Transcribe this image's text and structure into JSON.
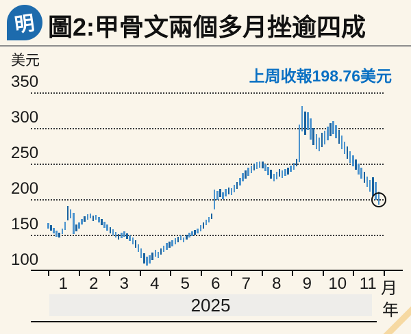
{
  "header": {
    "logo_char": "明",
    "title": "圖2:甲骨文兩個多月挫逾四成"
  },
  "annotation": {
    "text": "上周收報198.76美元"
  },
  "axis": {
    "y_unit": "美元",
    "x_month_unit": "月",
    "x_year_unit": "年",
    "year": "2025"
  },
  "colors": {
    "background": "#faf5ea",
    "logo_blue": "#1d6bad",
    "annotation_blue": "#0a70c3",
    "candle_light": "#4b93ce",
    "candle_dark": "#19619f",
    "band_gray": "#eeedea",
    "corner_stripe": "#f6d9a2"
  },
  "chart_data": {
    "type": "candlestick",
    "title": "圖2:甲骨文兩個多月挫逾四成",
    "ylabel": "美元",
    "xlabel": "月",
    "year": "2025",
    "ylim": [
      100,
      350
    ],
    "y_ticks": [
      350,
      300,
      250,
      200,
      150,
      100
    ],
    "x_months": [
      "1",
      "2",
      "3",
      "4",
      "5",
      "6",
      "7",
      "8",
      "9",
      "10",
      "11"
    ],
    "grid": "dotted-horizontal",
    "legend": "none",
    "annotation_text": "上周收報198.76美元",
    "last_close": 198.76,
    "highlight_last_point": true,
    "candles_format": "[month_decimal, low_usd, high_usd]",
    "candles": [
      [
        1.0,
        159,
        166
      ],
      [
        1.09,
        156,
        163
      ],
      [
        1.19,
        152,
        160
      ],
      [
        1.28,
        147,
        156
      ],
      [
        1.37,
        146,
        153
      ],
      [
        1.47,
        151,
        159
      ],
      [
        1.56,
        157,
        168
      ],
      [
        1.65,
        170,
        190
      ],
      [
        1.74,
        173,
        186
      ],
      [
        1.84,
        151,
        181
      ],
      [
        1.93,
        155,
        164
      ],
      [
        2.02,
        159,
        167
      ],
      [
        2.11,
        164,
        172
      ],
      [
        2.2,
        168,
        176
      ],
      [
        2.3,
        171,
        179
      ],
      [
        2.39,
        173,
        180
      ],
      [
        2.48,
        169,
        177
      ],
      [
        2.57,
        171,
        178
      ],
      [
        2.67,
        167,
        175
      ],
      [
        2.76,
        163,
        172
      ],
      [
        2.85,
        160,
        168
      ],
      [
        2.94,
        156,
        164
      ],
      [
        3.04,
        152,
        161
      ],
      [
        3.13,
        149,
        158
      ],
      [
        3.22,
        146,
        154
      ],
      [
        3.31,
        143,
        151
      ],
      [
        3.41,
        145,
        153
      ],
      [
        3.5,
        147,
        155
      ],
      [
        3.59,
        144,
        152
      ],
      [
        3.68,
        141,
        149
      ],
      [
        3.78,
        137,
        146
      ],
      [
        3.87,
        132,
        142
      ],
      [
        3.96,
        126,
        137
      ],
      [
        4.05,
        117,
        131
      ],
      [
        4.15,
        110,
        124
      ],
      [
        4.24,
        107,
        119
      ],
      [
        4.33,
        110,
        121
      ],
      [
        4.42,
        114,
        125
      ],
      [
        4.52,
        119,
        129
      ],
      [
        4.61,
        117,
        126
      ],
      [
        4.7,
        122,
        131
      ],
      [
        4.79,
        126,
        135
      ],
      [
        4.89,
        129,
        138
      ],
      [
        4.98,
        132,
        140
      ],
      [
        5.07,
        134,
        142
      ],
      [
        5.17,
        137,
        145
      ],
      [
        5.26,
        139,
        147
      ],
      [
        5.35,
        142,
        149
      ],
      [
        5.44,
        139,
        146
      ],
      [
        5.54,
        143,
        150
      ],
      [
        5.63,
        146,
        153
      ],
      [
        5.72,
        148,
        155
      ],
      [
        5.81,
        150,
        157
      ],
      [
        5.91,
        152,
        159
      ],
      [
        6.0,
        155,
        163
      ],
      [
        6.09,
        159,
        167
      ],
      [
        6.19,
        163,
        171
      ],
      [
        6.28,
        167,
        175
      ],
      [
        6.37,
        172,
        180
      ],
      [
        6.46,
        186,
        213
      ],
      [
        6.56,
        199,
        212
      ],
      [
        6.65,
        203,
        214
      ],
      [
        6.74,
        200,
        210
      ],
      [
        6.83,
        204,
        214
      ],
      [
        6.93,
        207,
        216
      ],
      [
        7.02,
        206,
        215
      ],
      [
        7.11,
        210,
        220
      ],
      [
        7.2,
        214,
        224
      ],
      [
        7.3,
        219,
        230
      ],
      [
        7.39,
        225,
        237
      ],
      [
        7.48,
        229,
        240
      ],
      [
        7.57,
        233,
        244
      ],
      [
        7.67,
        237,
        247
      ],
      [
        7.76,
        240,
        250
      ],
      [
        7.85,
        242,
        252
      ],
      [
        7.94,
        244,
        253
      ],
      [
        8.04,
        243,
        253
      ],
      [
        8.13,
        239,
        249
      ],
      [
        8.22,
        234,
        245
      ],
      [
        8.31,
        229,
        241
      ],
      [
        8.41,
        225,
        236
      ],
      [
        8.5,
        228,
        238
      ],
      [
        8.59,
        232,
        242
      ],
      [
        8.68,
        230,
        240
      ],
      [
        8.78,
        233,
        242
      ],
      [
        8.87,
        235,
        244
      ],
      [
        8.96,
        238,
        247
      ],
      [
        9.06,
        241,
        251
      ],
      [
        9.15,
        246,
        257
      ],
      [
        9.24,
        252,
        305
      ],
      [
        9.33,
        295,
        331
      ],
      [
        9.43,
        290,
        323
      ],
      [
        9.52,
        297,
        322
      ],
      [
        9.61,
        284,
        313
      ],
      [
        9.7,
        276,
        300
      ],
      [
        9.8,
        270,
        291
      ],
      [
        9.89,
        267,
        287
      ],
      [
        9.98,
        273,
        293
      ],
      [
        10.07,
        277,
        296
      ],
      [
        10.17,
        283,
        302
      ],
      [
        10.26,
        288,
        307
      ],
      [
        10.35,
        291,
        310
      ],
      [
        10.44,
        286,
        304
      ],
      [
        10.54,
        278,
        297
      ],
      [
        10.63,
        270,
        289
      ],
      [
        10.72,
        263,
        281
      ],
      [
        10.82,
        257,
        274
      ],
      [
        10.91,
        251,
        267
      ],
      [
        11.0,
        246,
        262
      ],
      [
        11.1,
        241,
        256
      ],
      [
        11.19,
        235,
        250
      ],
      [
        11.28,
        229,
        244
      ],
      [
        11.38,
        223,
        238
      ],
      [
        11.47,
        217,
        232
      ],
      [
        11.56,
        211,
        227
      ],
      [
        11.66,
        205,
        231
      ],
      [
        11.75,
        199,
        224
      ],
      [
        11.85,
        192,
        211
      ]
    ]
  }
}
